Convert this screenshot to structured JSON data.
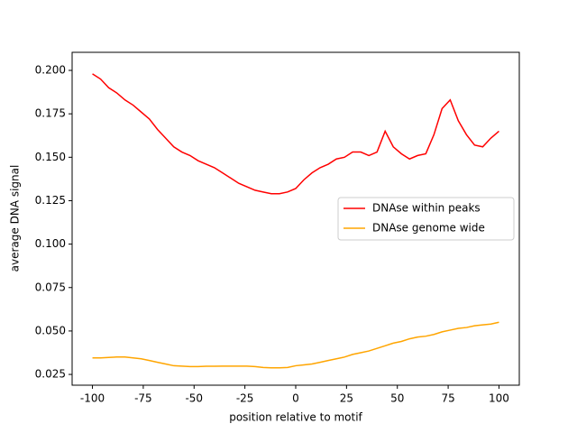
{
  "chart_data": {
    "type": "line",
    "xlabel": "position relative to motif",
    "ylabel": "average DNA signal",
    "x": [
      -100,
      -96,
      -92,
      -88,
      -84,
      -80,
      -76,
      -72,
      -68,
      -64,
      -60,
      -56,
      -52,
      -48,
      -44,
      -40,
      -36,
      -32,
      -28,
      -24,
      -20,
      -16,
      -12,
      -8,
      -4,
      0,
      4,
      8,
      12,
      16,
      20,
      24,
      28,
      32,
      36,
      40,
      44,
      48,
      52,
      56,
      60,
      64,
      68,
      72,
      76,
      80,
      84,
      88,
      92,
      96,
      100
    ],
    "series": [
      {
        "name": "DNAse within peaks",
        "color": "#ff0000",
        "values": [
          0.198,
          0.195,
          0.19,
          0.187,
          0.183,
          0.18,
          0.176,
          0.172,
          0.166,
          0.161,
          0.156,
          0.153,
          0.151,
          0.148,
          0.146,
          0.144,
          0.141,
          0.138,
          0.135,
          0.133,
          0.131,
          0.13,
          0.129,
          0.129,
          0.13,
          0.132,
          0.137,
          0.141,
          0.144,
          0.146,
          0.149,
          0.15,
          0.153,
          0.153,
          0.151,
          0.153,
          0.165,
          0.156,
          0.152,
          0.149,
          0.151,
          0.152,
          0.163,
          0.178,
          0.183,
          0.171,
          0.163,
          0.157,
          0.156,
          0.161,
          0.165
        ]
      },
      {
        "name": "DNAse genome wide",
        "color": "#ffa500",
        "values": [
          0.0345,
          0.0345,
          0.0348,
          0.035,
          0.035,
          0.0345,
          0.034,
          0.033,
          0.032,
          0.031,
          0.03,
          0.0298,
          0.0295,
          0.0295,
          0.0297,
          0.0297,
          0.0298,
          0.0298,
          0.0298,
          0.0298,
          0.0295,
          0.029,
          0.0288,
          0.0288,
          0.029,
          0.03,
          0.0305,
          0.031,
          0.032,
          0.033,
          0.034,
          0.035,
          0.0365,
          0.0375,
          0.0385,
          0.04,
          0.0415,
          0.043,
          0.044,
          0.0455,
          0.0465,
          0.047,
          0.048,
          0.0495,
          0.0505,
          0.0515,
          0.052,
          0.053,
          0.0535,
          0.054,
          0.055
        ]
      }
    ],
    "xlim": [
      -110,
      110
    ],
    "ylim": [
      0.0188,
      0.2104
    ],
    "xticks": [
      -100,
      -75,
      -50,
      -25,
      0,
      25,
      50,
      75,
      100
    ],
    "yticks": [
      {
        "value": 0.025,
        "label": "0.025"
      },
      {
        "value": 0.05,
        "label": "0.050"
      },
      {
        "value": 0.075,
        "label": "0.075"
      },
      {
        "value": 0.1,
        "label": "0.100"
      },
      {
        "value": 0.125,
        "label": "0.125"
      },
      {
        "value": 0.15,
        "label": "0.150"
      },
      {
        "value": 0.175,
        "label": "0.175"
      },
      {
        "value": 0.2,
        "label": "0.200"
      }
    ],
    "legend": "center right"
  }
}
